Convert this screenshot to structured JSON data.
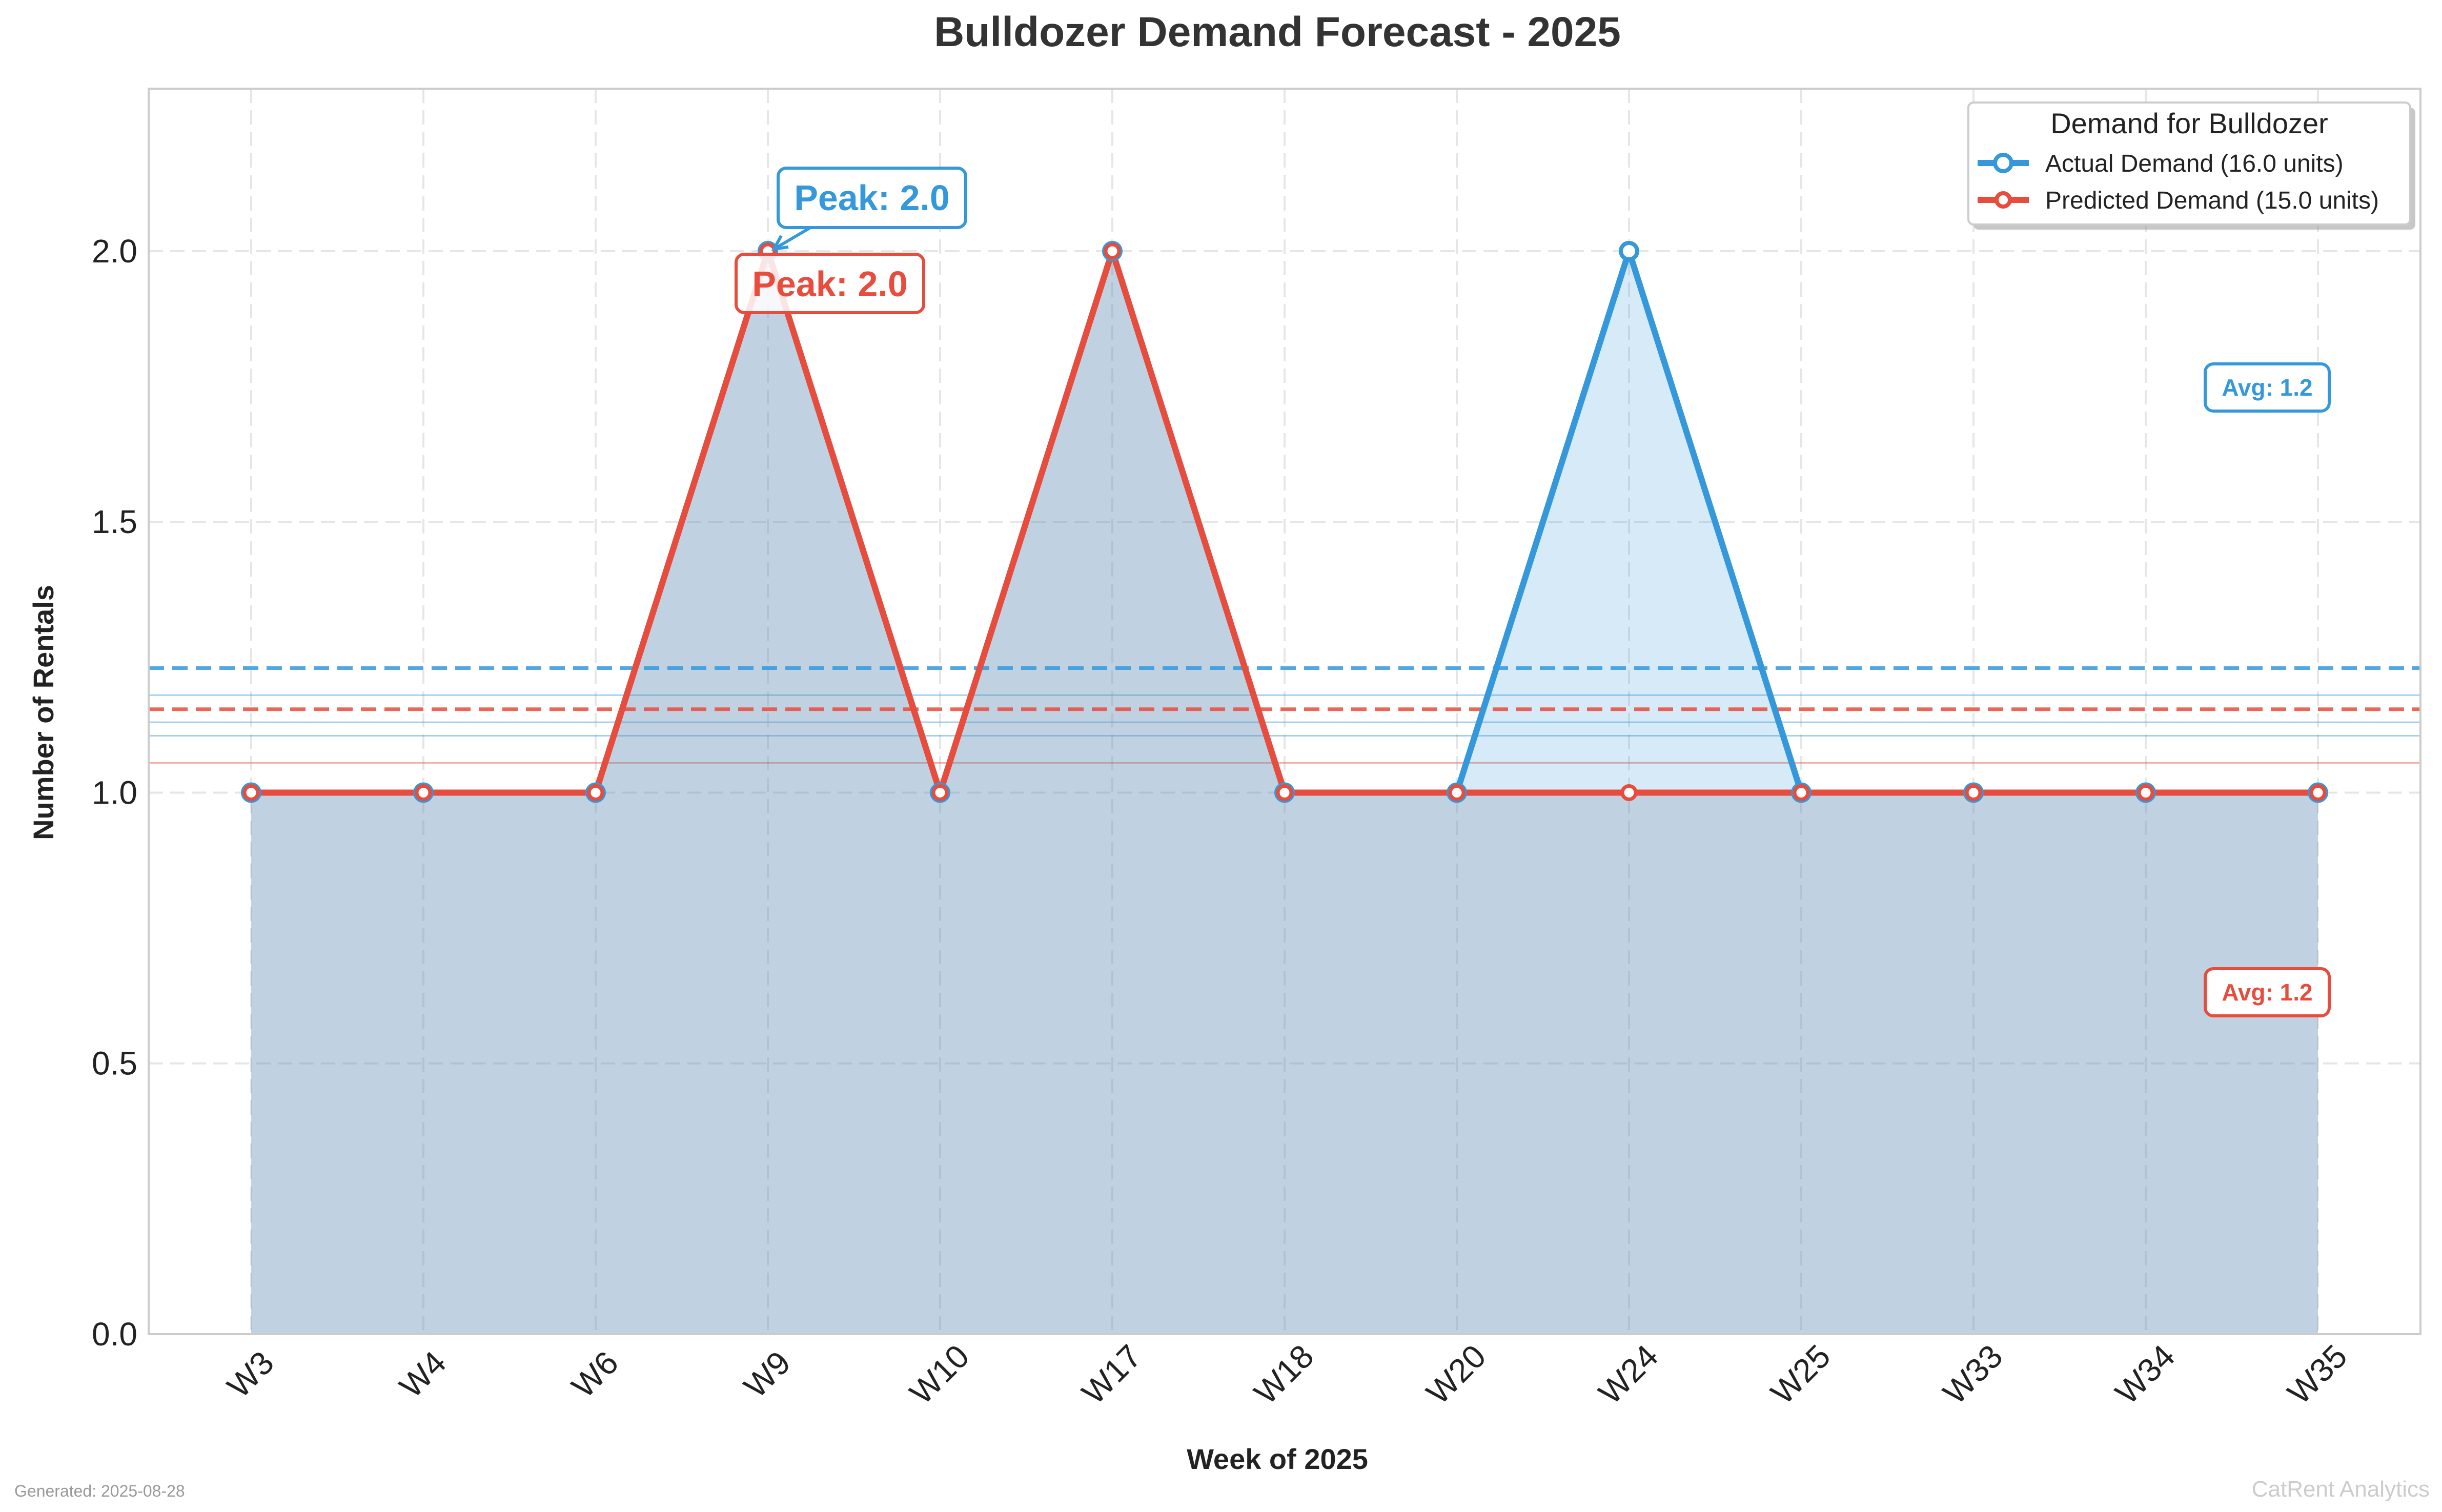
{
  "chart_data": {
    "type": "line",
    "title": "Bulldozer Demand Forecast - 2025",
    "xlabel": "Week of 2025",
    "ylabel": "Number of Rentals",
    "categories": [
      "W3",
      "W4",
      "W6",
      "W9",
      "W10",
      "W17",
      "W18",
      "W20",
      "W24",
      "W25",
      "W33",
      "W34",
      "W35"
    ],
    "series": [
      {
        "name": "Actual Demand (16.0 units)",
        "color": "#3498db",
        "values": [
          1,
          1,
          1,
          2,
          1,
          2,
          1,
          1,
          2,
          1,
          1,
          1,
          1
        ]
      },
      {
        "name": "Predicted Demand (15.0 units)",
        "color": "#e74c3c",
        "values": [
          1,
          1,
          1,
          2,
          1,
          2,
          1,
          1,
          1,
          1,
          1,
          1,
          1
        ]
      }
    ],
    "ylim": [
      0,
      2.3
    ],
    "yticks": [
      0.0,
      0.5,
      1.0,
      1.5,
      2.0
    ],
    "ytick_labels": [
      "0.0",
      "0.5",
      "1.0",
      "1.5",
      "2.0"
    ],
    "grid": true,
    "legend": {
      "title": "Demand for Bulldozer",
      "placement": "top-right"
    },
    "average_lines": [
      {
        "series": "Actual Demand (16.0 units)",
        "value": 1.23,
        "label": "Avg: 1.2"
      },
      {
        "series": "Predicted Demand (15.0 units)",
        "value": 1.154,
        "label": "Avg: 1.2"
      }
    ],
    "band_lines": [
      {
        "color": "#3498db",
        "values": [
          1.18,
          1.13,
          1.105
        ]
      },
      {
        "color": "#e74c3c",
        "values": [
          1.055
        ]
      }
    ],
    "annotations": [
      {
        "series": "Actual Demand (16.0 units)",
        "category": "W9",
        "value": 2.0,
        "text": "Peak: 2.0"
      },
      {
        "series": "Predicted Demand (15.0 units)",
        "category": "W9",
        "value": 2.0,
        "text": "Peak: 2.0"
      }
    ]
  },
  "footer": {
    "generated": "Generated: 2025-08-28",
    "brand": "CatRent Analytics"
  }
}
